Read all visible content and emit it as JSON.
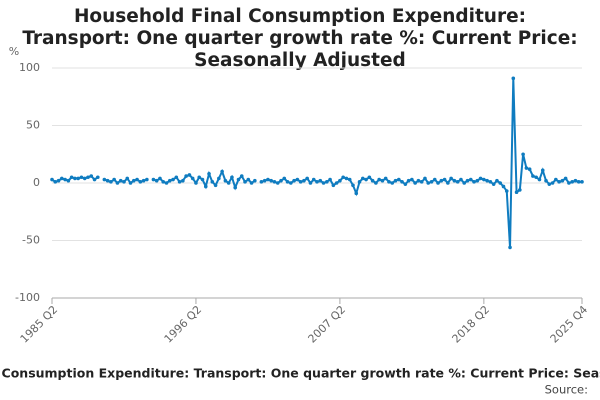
{
  "chart_data": {
    "type": "line",
    "title": "Household Final Consumption Expenditure: Transport: One quarter growth rate %: Current Price: Seasonally Adjusted",
    "y_label": "%",
    "footer_title": "Household Final Consumption Expenditure: Transport: One quarter growth rate %: Current Price: Seasonally Adjusted",
    "source": "Source:",
    "color": "#0f7cc0",
    "grid": true,
    "ylim": [
      -100,
      100
    ],
    "yticks": [
      -100,
      -50,
      0,
      50,
      100
    ],
    "categories": [
      "1985 Q2",
      null,
      null,
      null,
      null,
      null,
      null,
      null,
      null,
      null,
      null,
      null,
      null,
      null,
      null,
      null,
      null,
      null,
      null,
      null,
      null,
      null,
      null,
      null,
      null,
      null,
      null,
      null,
      null,
      null,
      null,
      null,
      null,
      null,
      null,
      null,
      null,
      null,
      null,
      null,
      null,
      null,
      null,
      null,
      "1996 Q2",
      null,
      null,
      null,
      null,
      null,
      null,
      null,
      null,
      null,
      null,
      null,
      null,
      null,
      null,
      null,
      null,
      null,
      null,
      null,
      null,
      null,
      null,
      null,
      null,
      null,
      null,
      null,
      null,
      null,
      null,
      null,
      null,
      null,
      null,
      null,
      null,
      null,
      null,
      null,
      null,
      null,
      null,
      null,
      "2007 Q2",
      null,
      null,
      null,
      null,
      null,
      null,
      null,
      null,
      null,
      null,
      null,
      null,
      null,
      null,
      null,
      null,
      null,
      null,
      null,
      null,
      null,
      null,
      null,
      null,
      null,
      null,
      null,
      null,
      null,
      null,
      null,
      null,
      null,
      null,
      null,
      null,
      null,
      null,
      null,
      null,
      null,
      null,
      null,
      "2018 Q2",
      null,
      null,
      null,
      null,
      null,
      null,
      null,
      null,
      null,
      null,
      null,
      null,
      null,
      null,
      null,
      null,
      null,
      null,
      null,
      null,
      null,
      null,
      null,
      null,
      null,
      null,
      null,
      null,
      null,
      "2025 Q4"
    ],
    "values": [
      3,
      1,
      2,
      4,
      3,
      2,
      5,
      4,
      4,
      5,
      4,
      5,
      6,
      3,
      5,
      null,
      3,
      2,
      1,
      3,
      0,
      2,
      1,
      4,
      0,
      2,
      3,
      1,
      2,
      3,
      null,
      3,
      2,
      4,
      1,
      0,
      2,
      3,
      5,
      1,
      2,
      6,
      7,
      4,
      0,
      5,
      3,
      -3,
      8,
      1,
      -2,
      4,
      10,
      2,
      0,
      5,
      -4,
      3,
      6,
      1,
      3,
      0,
      2,
      null,
      1,
      2,
      3,
      2,
      1,
      0,
      2,
      4,
      1,
      0,
      2,
      3,
      1,
      2,
      4,
      0,
      3,
      1,
      2,
      0,
      1,
      3,
      -2,
      0,
      2,
      5,
      4,
      3,
      -2,
      -9,
      1,
      4,
      3,
      5,
      2,
      0,
      3,
      2,
      4,
      1,
      0,
      2,
      3,
      1,
      -1,
      2,
      3,
      0,
      2,
      1,
      4,
      0,
      1,
      3,
      0,
      2,
      3,
      0,
      4,
      2,
      1,
      3,
      0,
      2,
      3,
      1,
      2,
      4,
      3,
      2,
      1,
      -1,
      2,
      0,
      -3,
      -7,
      -56,
      91,
      -8,
      -6,
      25,
      13,
      12,
      6,
      5,
      3,
      11,
      2,
      -1,
      0,
      3,
      1,
      2,
      4,
      0,
      1,
      2,
      1,
      1
    ]
  }
}
